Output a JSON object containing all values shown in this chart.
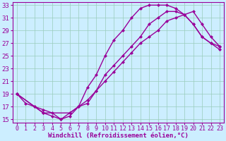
{
  "xlabel": "Windchill (Refroidissement éolien,°C)",
  "bg_color": "#cceeff",
  "line_color": "#990099",
  "grid_color": "#99ccbb",
  "xlim": [
    -0.5,
    23.5
  ],
  "ylim": [
    14.5,
    33.5
  ],
  "yticks": [
    15,
    17,
    19,
    21,
    23,
    25,
    27,
    29,
    31,
    33
  ],
  "xticks": [
    0,
    1,
    2,
    3,
    4,
    5,
    6,
    7,
    8,
    9,
    10,
    11,
    12,
    13,
    14,
    15,
    16,
    17,
    18,
    19,
    20,
    21,
    22,
    23
  ],
  "line1_x": [
    0,
    1,
    2,
    3,
    4,
    5,
    6,
    7,
    8,
    9,
    10,
    11,
    12,
    13,
    14,
    15,
    16,
    17,
    18,
    19,
    20,
    21,
    22,
    23
  ],
  "line1_y": [
    19,
    17.5,
    17,
    16,
    15.5,
    15,
    15.5,
    17,
    17.5,
    19.5,
    22,
    23.5,
    25,
    26.5,
    28,
    30,
    31,
    32,
    32,
    31.5,
    30,
    28,
    27,
    26
  ],
  "line2_x": [
    0,
    2,
    3,
    4,
    5,
    6,
    7,
    8,
    9,
    10,
    11,
    12,
    13,
    14,
    15,
    16,
    17,
    18,
    19,
    20,
    21,
    22,
    23
  ],
  "line2_y": [
    19,
    17,
    16.5,
    16,
    15,
    16,
    17,
    20,
    22,
    25,
    27.5,
    29,
    31,
    32.5,
    33,
    33,
    33,
    32.5,
    31.5,
    30,
    28,
    27,
    26.5
  ],
  "line3_x": [
    0,
    3,
    6,
    7,
    8,
    9,
    10,
    11,
    12,
    13,
    14,
    15,
    16,
    17,
    18,
    19,
    20,
    21,
    22,
    23
  ],
  "line3_y": [
    19,
    16,
    16,
    17,
    18,
    19.5,
    21,
    22.5,
    24,
    25.5,
    27,
    28,
    29,
    30.5,
    31,
    31.5,
    32,
    30,
    28,
    26.5
  ],
  "marker": "D",
  "marker_size": 2.5,
  "line_width": 1.0,
  "font_size": 6.5
}
